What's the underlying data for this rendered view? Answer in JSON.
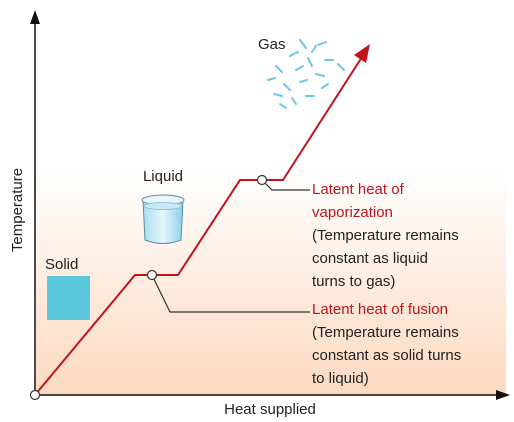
{
  "axes": {
    "y_label": "Temperature",
    "x_label": "Heat supplied"
  },
  "phases": {
    "solid": "Solid",
    "liquid": "Liquid",
    "gas": "Gas"
  },
  "annotations": [
    {
      "title": [
        "Latent heat  of",
        "vaporization"
      ],
      "description": [
        "(Temperature remains",
        "constant as liquid",
        "turns to gas)"
      ]
    },
    {
      "title": [
        "Latent heat of fusion"
      ],
      "description": [
        "(Temperature remains",
        "constant as solid turns",
        "to liquid)"
      ]
    }
  ]
}
